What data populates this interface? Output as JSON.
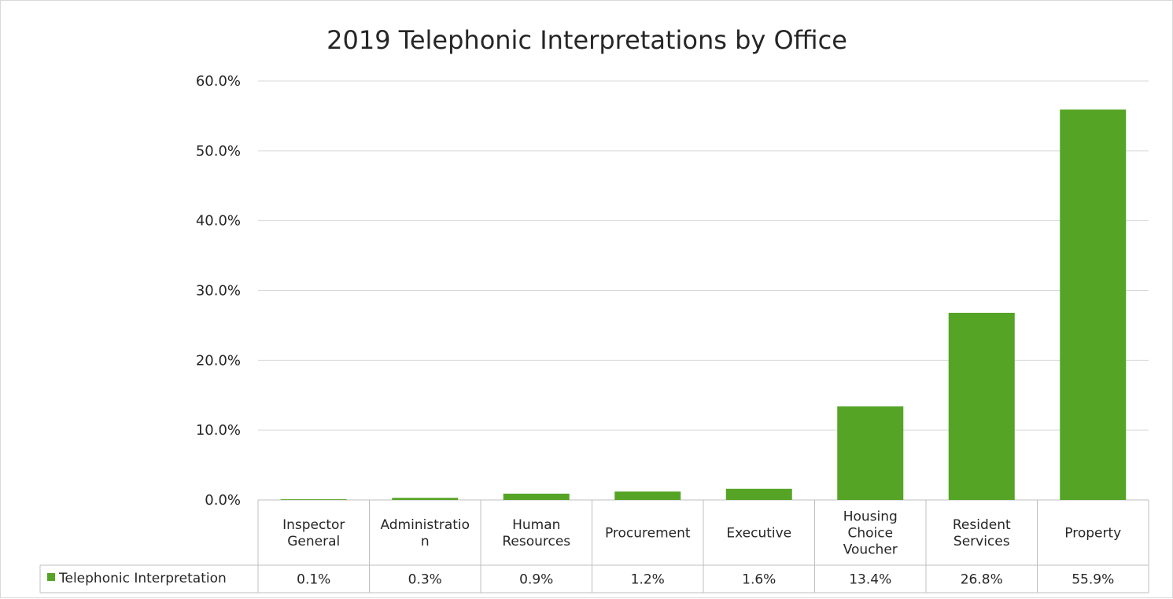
{
  "chart_data": {
    "type": "bar",
    "title": "2019 Telephonic Interpretations by Office",
    "categories": [
      [
        "Inspector",
        "General"
      ],
      [
        "Administratio",
        "n"
      ],
      [
        "Human",
        "Resources"
      ],
      [
        "Procurement"
      ],
      [
        "Executive"
      ],
      [
        "Housing",
        "Choice",
        "Voucher"
      ],
      [
        "Resident",
        "Services"
      ],
      [
        "Property"
      ]
    ],
    "series": [
      {
        "name": "Telephonic Interpretation",
        "values": [
          0.1,
          0.3,
          0.9,
          1.2,
          1.6,
          13.4,
          26.8,
          55.9
        ],
        "labels": [
          "0.1%",
          "0.3%",
          "0.9%",
          "1.2%",
          "1.6%",
          "13.4%",
          "26.8%",
          "55.9%"
        ]
      }
    ],
    "ylim": [
      0,
      60
    ],
    "yticks": [
      "0.0%",
      "10.0%",
      "20.0%",
      "30.0%",
      "40.0%",
      "50.0%",
      "60.0%"
    ],
    "grid": true,
    "legend": "data-table",
    "color": "#55a425"
  }
}
